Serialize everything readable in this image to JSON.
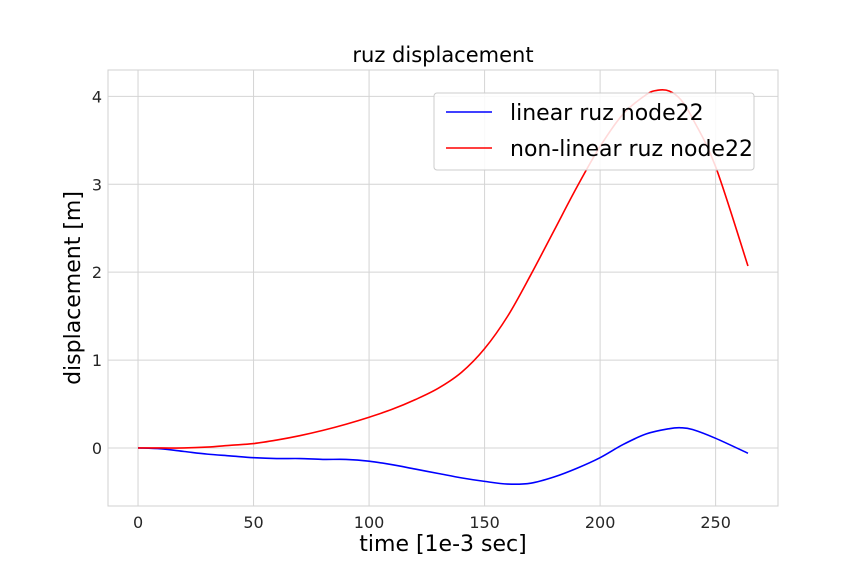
{
  "chart_data": {
    "type": "line",
    "title": "ruz displacement",
    "xlabel": "time [1e-3 sec]",
    "ylabel": "displacement [m]",
    "xlim": [
      -13,
      277
    ],
    "ylim": [
      -0.66,
      4.3
    ],
    "xticks": [
      "0",
      "50",
      "100",
      "150",
      "200",
      "250"
    ],
    "yticks": [
      "0",
      "1",
      "2",
      "3",
      "4"
    ],
    "grid": true,
    "legend_position": "top-right",
    "series": [
      {
        "name": "linear ruz node22",
        "color": "#0000ff",
        "x": [
          0,
          10,
          20,
          30,
          40,
          50,
          60,
          70,
          80,
          90,
          100,
          110,
          120,
          130,
          140,
          150,
          160,
          170,
          180,
          190,
          200,
          210,
          220,
          230,
          235,
          240,
          250,
          264
        ],
        "y": [
          0,
          -0.01,
          -0.04,
          -0.07,
          -0.09,
          -0.11,
          -0.12,
          -0.12,
          -0.13,
          -0.13,
          -0.15,
          -0.19,
          -0.24,
          -0.29,
          -0.34,
          -0.38,
          -0.41,
          -0.4,
          -0.33,
          -0.23,
          -0.11,
          0.04,
          0.16,
          0.22,
          0.23,
          0.21,
          0.11,
          -0.06
        ]
      },
      {
        "name": "non-linear ruz node22",
        "color": "#ff0000",
        "x": [
          0,
          10,
          20,
          30,
          40,
          50,
          60,
          70,
          80,
          90,
          100,
          110,
          120,
          130,
          140,
          150,
          160,
          170,
          180,
          190,
          200,
          210,
          220,
          225,
          230,
          235,
          240,
          250,
          264
        ],
        "y": [
          0,
          0,
          0,
          0.01,
          0.03,
          0.05,
          0.09,
          0.14,
          0.2,
          0.27,
          0.35,
          0.44,
          0.55,
          0.68,
          0.86,
          1.13,
          1.5,
          1.97,
          2.47,
          2.97,
          3.43,
          3.8,
          4.02,
          4.07,
          4.06,
          3.96,
          3.75,
          3.2,
          2.07
        ]
      }
    ]
  }
}
